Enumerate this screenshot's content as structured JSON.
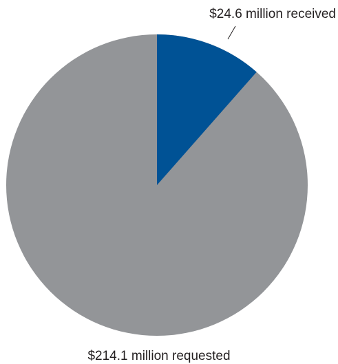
{
  "chart_data": {
    "type": "pie",
    "slices": [
      {
        "label": "$24.6 million received",
        "value": 24.6,
        "color": "#005295"
      },
      {
        "label": "$214.1 million requested",
        "value": 214.1,
        "color": "#939598"
      }
    ],
    "total": 214.1,
    "start_angle_deg": 0,
    "direction": "clockwise"
  }
}
